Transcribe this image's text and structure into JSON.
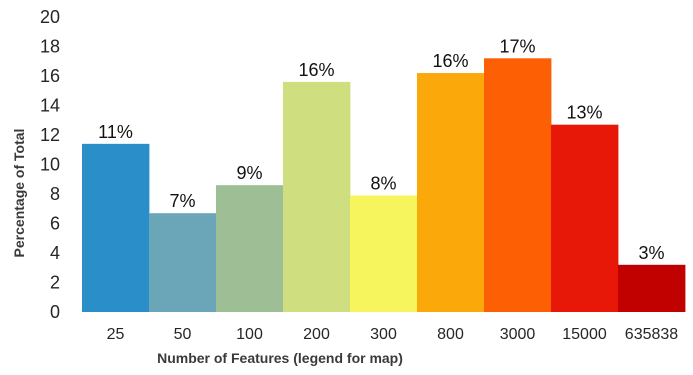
{
  "chart_data": {
    "type": "bar",
    "title": "",
    "xlabel": "Number of Features (legend for map)",
    "ylabel": "Percentage of Total",
    "ylim": [
      0,
      20
    ],
    "yticks": [
      "0",
      "2",
      "4",
      "6",
      "8",
      "10",
      "12",
      "14",
      "16",
      "18",
      "20"
    ],
    "categories": [
      "25",
      "50",
      "100",
      "200",
      "300",
      "800",
      "3000",
      "15000",
      "635838"
    ],
    "values": [
      11.4,
      6.7,
      8.6,
      15.6,
      7.9,
      16.2,
      17.2,
      12.7,
      3.2
    ],
    "data_labels": [
      "11%",
      "7%",
      "9%",
      "16%",
      "8%",
      "16%",
      "17%",
      "13%",
      "3%"
    ],
    "colors": [
      "#2a8fc9",
      "#6aa5b8",
      "#9ebf95",
      "#cfdf80",
      "#f6f55e",
      "#fba80a",
      "#fc5f04",
      "#e81808",
      "#c10000"
    ],
    "grid": false,
    "legend": "none"
  }
}
